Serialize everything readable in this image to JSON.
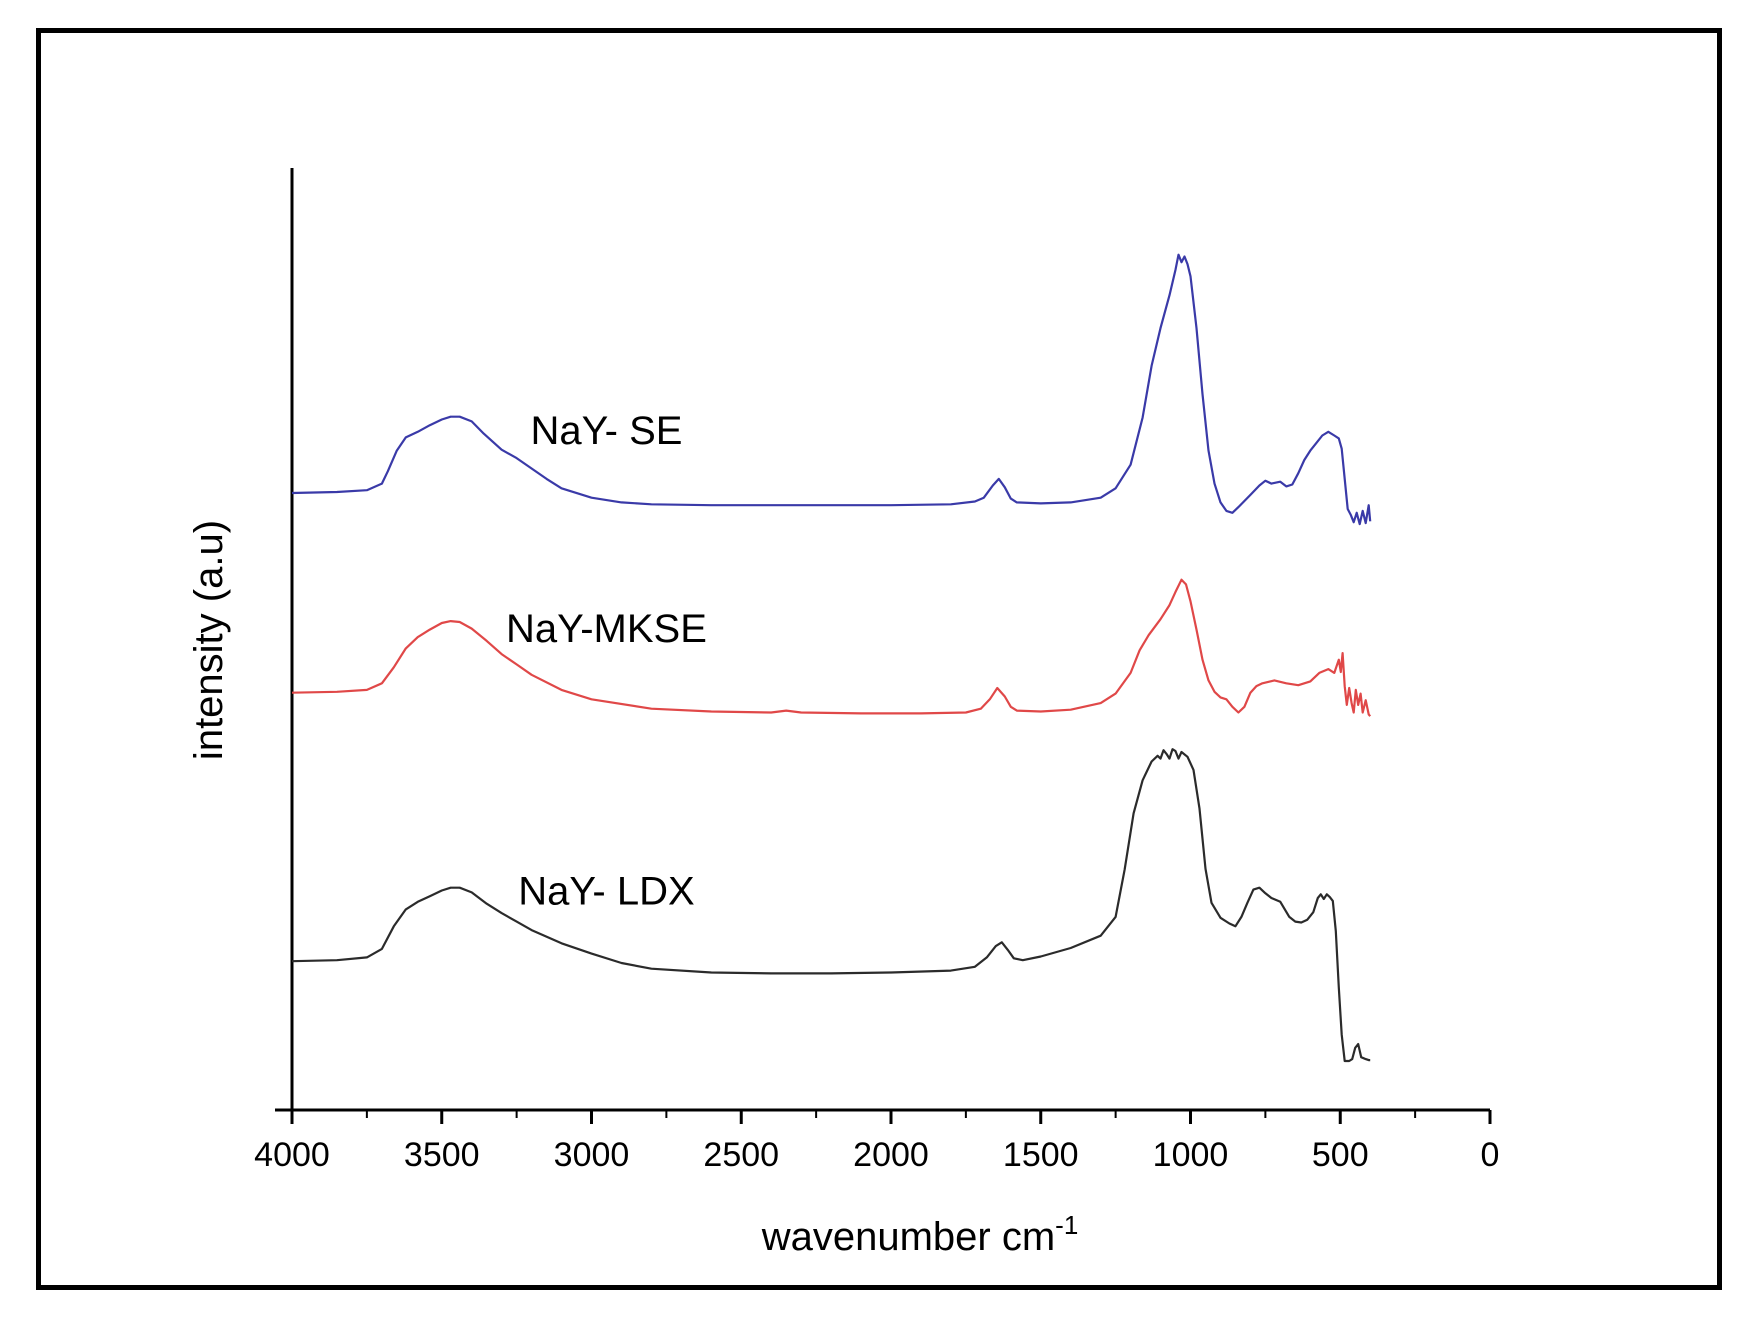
{
  "chart_data": {
    "type": "line",
    "title": "",
    "xlabel": "wavenumber cm",
    "xlabel_superscript": "-1",
    "ylabel": "intensity (a.u)",
    "xlim": [
      4000,
      0
    ],
    "x_reversed": true,
    "ylim": [
      0,
      100
    ],
    "grid": false,
    "y_ticks_shown": false,
    "x_ticks": [
      4000,
      3500,
      3000,
      2500,
      2000,
      1500,
      1000,
      500,
      0
    ],
    "x_tick_labels": [
      "4000",
      "3500",
      "3000",
      "2500",
      "2000",
      "1500",
      "1000",
      "500",
      "0"
    ],
    "series": [
      {
        "name": "NaY- SE",
        "color": "#3a3aa8",
        "label_at": [
          2950,
          70.7
        ],
        "points": [
          [
            4000,
            65.5
          ],
          [
            3850,
            65.6
          ],
          [
            3750,
            65.8
          ],
          [
            3700,
            66.5
          ],
          [
            3680,
            67.8
          ],
          [
            3650,
            70.0
          ],
          [
            3620,
            71.4
          ],
          [
            3580,
            72.0
          ],
          [
            3540,
            72.7
          ],
          [
            3500,
            73.3
          ],
          [
            3470,
            73.6
          ],
          [
            3440,
            73.6
          ],
          [
            3400,
            73.1
          ],
          [
            3360,
            71.8
          ],
          [
            3300,
            70.1
          ],
          [
            3250,
            69.2
          ],
          [
            3200,
            68.1
          ],
          [
            3150,
            67.0
          ],
          [
            3100,
            66.0
          ],
          [
            3000,
            65.0
          ],
          [
            2900,
            64.5
          ],
          [
            2800,
            64.3
          ],
          [
            2600,
            64.2
          ],
          [
            2400,
            64.2
          ],
          [
            2200,
            64.2
          ],
          [
            2000,
            64.2
          ],
          [
            1800,
            64.3
          ],
          [
            1720,
            64.6
          ],
          [
            1690,
            65.0
          ],
          [
            1660,
            66.3
          ],
          [
            1640,
            67.0
          ],
          [
            1620,
            66.1
          ],
          [
            1600,
            64.9
          ],
          [
            1580,
            64.5
          ],
          [
            1500,
            64.4
          ],
          [
            1400,
            64.5
          ],
          [
            1300,
            65.0
          ],
          [
            1250,
            66.0
          ],
          [
            1200,
            68.5
          ],
          [
            1160,
            73.5
          ],
          [
            1130,
            79.0
          ],
          [
            1100,
            83.0
          ],
          [
            1070,
            86.5
          ],
          [
            1050,
            89.2
          ],
          [
            1040,
            90.8
          ],
          [
            1030,
            90.0
          ],
          [
            1020,
            90.6
          ],
          [
            1010,
            89.8
          ],
          [
            1000,
            88.5
          ],
          [
            980,
            83.0
          ],
          [
            960,
            76.0
          ],
          [
            940,
            70.0
          ],
          [
            920,
            66.5
          ],
          [
            900,
            64.5
          ],
          [
            880,
            63.6
          ],
          [
            860,
            63.4
          ],
          [
            840,
            64.0
          ],
          [
            800,
            65.3
          ],
          [
            770,
            66.3
          ],
          [
            750,
            66.8
          ],
          [
            730,
            66.5
          ],
          [
            700,
            66.7
          ],
          [
            680,
            66.2
          ],
          [
            660,
            66.4
          ],
          [
            640,
            67.6
          ],
          [
            620,
            69.0
          ],
          [
            600,
            70.0
          ],
          [
            580,
            70.8
          ],
          [
            560,
            71.6
          ],
          [
            540,
            72.0
          ],
          [
            520,
            71.6
          ],
          [
            505,
            71.3
          ],
          [
            495,
            70.2
          ],
          [
            485,
            67.0
          ],
          [
            475,
            63.8
          ],
          [
            465,
            63.2
          ],
          [
            455,
            62.4
          ],
          [
            445,
            63.4
          ],
          [
            435,
            62.2
          ],
          [
            425,
            63.6
          ],
          [
            415,
            62.3
          ],
          [
            405,
            64.2
          ],
          [
            400,
            62.5
          ]
        ]
      },
      {
        "name": "NaY-MKSE",
        "color": "#e04848",
        "label_at": [
          2950,
          49.7
        ],
        "points": [
          [
            4000,
            44.3
          ],
          [
            3850,
            44.4
          ],
          [
            3750,
            44.6
          ],
          [
            3700,
            45.3
          ],
          [
            3660,
            47.0
          ],
          [
            3620,
            49.0
          ],
          [
            3580,
            50.2
          ],
          [
            3540,
            51.0
          ],
          [
            3500,
            51.7
          ],
          [
            3470,
            51.9
          ],
          [
            3440,
            51.8
          ],
          [
            3400,
            51.1
          ],
          [
            3350,
            49.8
          ],
          [
            3300,
            48.4
          ],
          [
            3250,
            47.3
          ],
          [
            3200,
            46.2
          ],
          [
            3100,
            44.6
          ],
          [
            3000,
            43.6
          ],
          [
            2800,
            42.6
          ],
          [
            2600,
            42.3
          ],
          [
            2400,
            42.2
          ],
          [
            2350,
            42.4
          ],
          [
            2300,
            42.2
          ],
          [
            2100,
            42.1
          ],
          [
            1900,
            42.1
          ],
          [
            1750,
            42.2
          ],
          [
            1700,
            42.6
          ],
          [
            1670,
            43.6
          ],
          [
            1645,
            44.8
          ],
          [
            1620,
            43.9
          ],
          [
            1600,
            42.8
          ],
          [
            1580,
            42.4
          ],
          [
            1500,
            42.3
          ],
          [
            1400,
            42.5
          ],
          [
            1300,
            43.2
          ],
          [
            1250,
            44.2
          ],
          [
            1200,
            46.4
          ],
          [
            1170,
            48.8
          ],
          [
            1140,
            50.4
          ],
          [
            1100,
            52.1
          ],
          [
            1070,
            53.6
          ],
          [
            1050,
            55.0
          ],
          [
            1030,
            56.3
          ],
          [
            1015,
            55.8
          ],
          [
            1000,
            54.0
          ],
          [
            980,
            51.0
          ],
          [
            960,
            47.8
          ],
          [
            940,
            45.6
          ],
          [
            920,
            44.4
          ],
          [
            900,
            43.8
          ],
          [
            880,
            43.6
          ],
          [
            860,
            42.8
          ],
          [
            840,
            42.2
          ],
          [
            820,
            42.8
          ],
          [
            800,
            44.3
          ],
          [
            780,
            45.0
          ],
          [
            760,
            45.3
          ],
          [
            720,
            45.6
          ],
          [
            680,
            45.3
          ],
          [
            640,
            45.1
          ],
          [
            600,
            45.5
          ],
          [
            570,
            46.4
          ],
          [
            540,
            46.8
          ],
          [
            520,
            46.4
          ],
          [
            505,
            47.8
          ],
          [
            498,
            46.5
          ],
          [
            492,
            48.5
          ],
          [
            485,
            45.0
          ],
          [
            478,
            43.0
          ],
          [
            470,
            44.8
          ],
          [
            462,
            43.2
          ],
          [
            455,
            42.2
          ],
          [
            448,
            44.6
          ],
          [
            440,
            43.0
          ],
          [
            432,
            44.2
          ],
          [
            425,
            42.2
          ],
          [
            415,
            43.5
          ],
          [
            405,
            42.0
          ],
          [
            400,
            41.8
          ]
        ]
      },
      {
        "name": "NaY- LDX",
        "color": "#2b2b2b",
        "label_at": [
          2950,
          21.8
        ],
        "points": [
          [
            4000,
            15.8
          ],
          [
            3850,
            15.9
          ],
          [
            3750,
            16.2
          ],
          [
            3700,
            17.1
          ],
          [
            3660,
            19.5
          ],
          [
            3620,
            21.3
          ],
          [
            3580,
            22.1
          ],
          [
            3540,
            22.7
          ],
          [
            3500,
            23.3
          ],
          [
            3470,
            23.6
          ],
          [
            3440,
            23.6
          ],
          [
            3400,
            23.1
          ],
          [
            3350,
            21.9
          ],
          [
            3300,
            20.9
          ],
          [
            3250,
            20.0
          ],
          [
            3200,
            19.1
          ],
          [
            3100,
            17.7
          ],
          [
            3000,
            16.6
          ],
          [
            2900,
            15.6
          ],
          [
            2800,
            15.0
          ],
          [
            2600,
            14.6
          ],
          [
            2400,
            14.5
          ],
          [
            2200,
            14.5
          ],
          [
            2000,
            14.6
          ],
          [
            1800,
            14.8
          ],
          [
            1720,
            15.2
          ],
          [
            1680,
            16.2
          ],
          [
            1650,
            17.4
          ],
          [
            1630,
            17.8
          ],
          [
            1610,
            17.0
          ],
          [
            1590,
            16.1
          ],
          [
            1560,
            15.9
          ],
          [
            1500,
            16.3
          ],
          [
            1400,
            17.2
          ],
          [
            1300,
            18.5
          ],
          [
            1250,
            20.5
          ],
          [
            1220,
            25.5
          ],
          [
            1190,
            31.5
          ],
          [
            1160,
            35.0
          ],
          [
            1130,
            37.0
          ],
          [
            1110,
            37.6
          ],
          [
            1100,
            37.3
          ],
          [
            1090,
            38.2
          ],
          [
            1080,
            37.8
          ],
          [
            1070,
            37.3
          ],
          [
            1060,
            38.3
          ],
          [
            1050,
            38.1
          ],
          [
            1040,
            37.3
          ],
          [
            1030,
            38.0
          ],
          [
            1010,
            37.5
          ],
          [
            990,
            36.1
          ],
          [
            970,
            32.0
          ],
          [
            950,
            25.6
          ],
          [
            930,
            22.0
          ],
          [
            900,
            20.4
          ],
          [
            870,
            19.8
          ],
          [
            850,
            19.5
          ],
          [
            830,
            20.5
          ],
          [
            810,
            22.0
          ],
          [
            790,
            23.4
          ],
          [
            770,
            23.6
          ],
          [
            750,
            23.0
          ],
          [
            730,
            22.5
          ],
          [
            700,
            22.1
          ],
          [
            670,
            20.5
          ],
          [
            650,
            20.0
          ],
          [
            630,
            19.9
          ],
          [
            610,
            20.2
          ],
          [
            590,
            21.0
          ],
          [
            575,
            22.5
          ],
          [
            565,
            22.9
          ],
          [
            555,
            22.4
          ],
          [
            545,
            22.9
          ],
          [
            535,
            22.6
          ],
          [
            525,
            22.2
          ],
          [
            515,
            19.0
          ],
          [
            505,
            13.0
          ],
          [
            495,
            8.0
          ],
          [
            485,
            5.2
          ],
          [
            470,
            5.2
          ],
          [
            460,
            5.4
          ],
          [
            450,
            6.6
          ],
          [
            440,
            7.0
          ],
          [
            430,
            5.6
          ],
          [
            415,
            5.4
          ],
          [
            405,
            5.3
          ],
          [
            400,
            5.3
          ]
        ]
      }
    ]
  }
}
